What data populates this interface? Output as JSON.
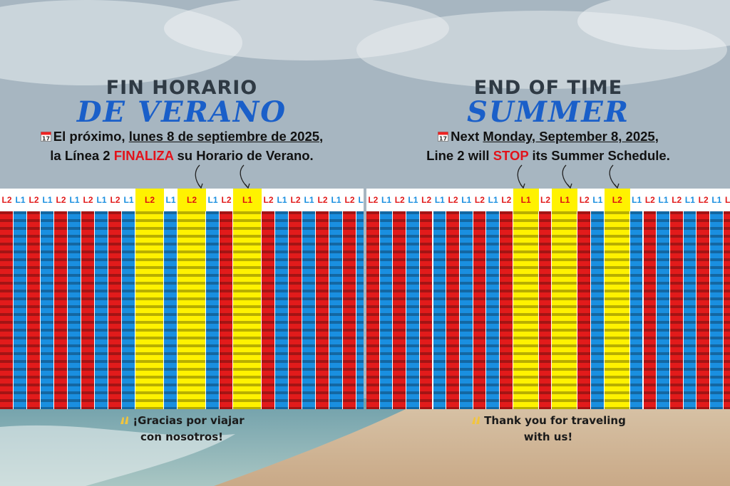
{
  "spanish": {
    "title_line1": "FIN HORARIO",
    "title_line2": "DE VERANO",
    "intro": "El próximo, ",
    "date": "lunes 8 de septiembre de 2025",
    "date_end": ",",
    "line2_a": "la Línea 2 ",
    "line2_b": "FINALIZA",
    "line2_c": " su Horario de Verano.",
    "thanks_1": "¡Gracias por viajar",
    "thanks_2": "con nosotros!"
  },
  "english": {
    "title_line1": "END OF TIME",
    "title_line2": "SUMMER",
    "intro": "Next ",
    "date": "Monday, September 8, 2025",
    "date_end": ",",
    "line2_a": "Line 2 will ",
    "line2_b": "STOP",
    "line2_c": " its Summer Schedule.",
    "thanks_1": "Thank you for traveling",
    "thanks_2": "with us!"
  },
  "calendar_day": "17",
  "route_labels": {
    "line1": "L1",
    "line2": "L2"
  },
  "colors": {
    "line1": "#1a8fe0",
    "line2": "#e21b1b",
    "highlight": "#fff200",
    "title_blue": "#1a5fc9",
    "alert_red": "#e2131b"
  },
  "timetable": {
    "spanish_columns": [
      "L2",
      "L1",
      "L2",
      "L1",
      "L2",
      "L1",
      "L2",
      "L1",
      "L2",
      "L1",
      "L2",
      "L1",
      "L2",
      "L1",
      "L2",
      "L1",
      "L2",
      "L1",
      "L2",
      "L1",
      "L2",
      "L1",
      "L2",
      "L1",
      "L2"
    ],
    "english_columns": [
      "L2",
      "L1",
      "L2",
      "L1",
      "L2",
      "L1",
      "L2",
      "L1",
      "L2",
      "L1",
      "L2",
      "L1",
      "L2",
      "L1",
      "L2",
      "L1",
      "L2",
      "L1",
      "L2",
      "L1",
      "L2",
      "L1",
      "L2",
      "L1",
      "L2",
      "L1"
    ]
  }
}
